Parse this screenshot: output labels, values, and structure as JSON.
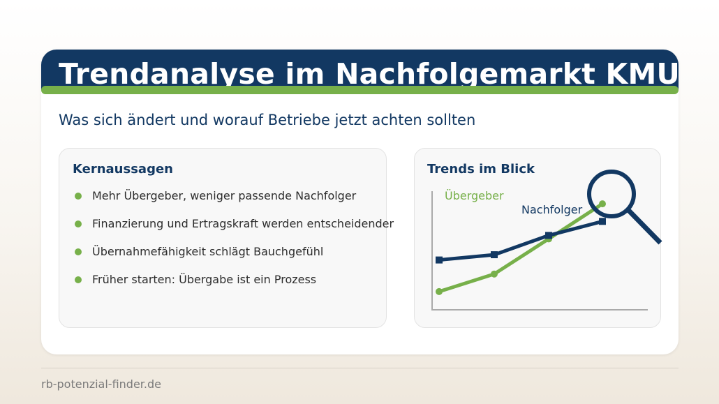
{
  "slide": {
    "title": "Trendanalyse im Nachfolgemarkt KMU",
    "subtitle": "Was sich ändert und worauf Betriebe jetzt achten sollten"
  },
  "left_panel": {
    "heading": "Kernaussagen",
    "bullets": [
      "Mehr Übergeber, weniger passende Nachfolger",
      "Finanzierung und Ertragskraft werden entscheidender",
      "Übernahmefähigkeit schlägt Bauchgefühl",
      "Früher starten: Übergabe ist ein Prozess"
    ]
  },
  "right_panel": {
    "heading": "Trends im Blick"
  },
  "chart_data": {
    "type": "line",
    "x": [
      1,
      2,
      3,
      4
    ],
    "series": [
      {
        "name": "Übergeber",
        "values": [
          1.0,
          2.0,
          4.0,
          6.0
        ],
        "color": "#77b04a",
        "marker": "circle"
      },
      {
        "name": "Nachfolger",
        "values": [
          2.8,
          3.1,
          4.2,
          5.0
        ],
        "color": "#123862",
        "marker": "square"
      }
    ],
    "ylim": [
      0,
      7
    ],
    "grid": false,
    "axes": "left-bottom",
    "annotation_icon": "magnifier-icon"
  },
  "footer": {
    "text": "rb-potenzial-finder.de"
  },
  "colors": {
    "navy": "#123862",
    "green": "#77b04a",
    "text": "#2d2d2d",
    "muted": "#7a7a7a"
  }
}
